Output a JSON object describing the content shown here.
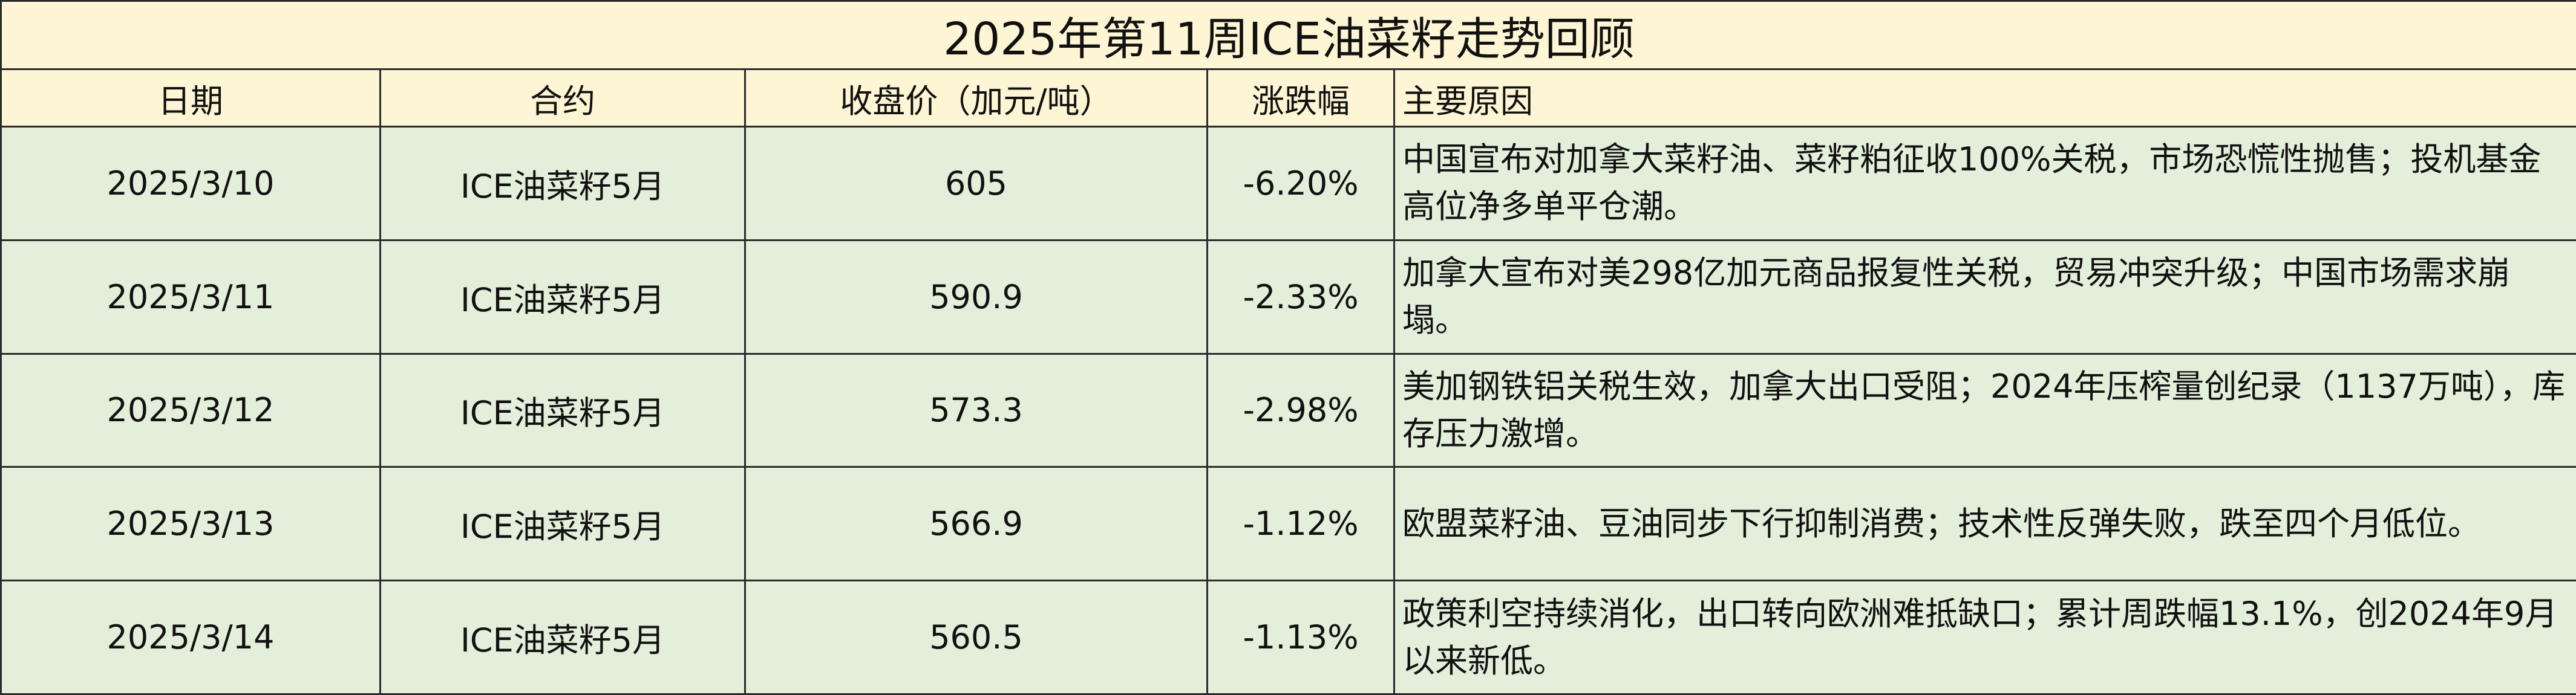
{
  "header": {
    "title": "2025年第11周ICE油菜籽走势回顾",
    "columns": [
      "日期",
      "合约",
      "收盘价（加元/吨）",
      "涨跌幅",
      "主要原因"
    ]
  },
  "table": {
    "rows": [
      [
        "2025/3/10",
        "ICE油菜籽5月",
        "605",
        "-6.20%",
        "中国宣布对加拿大菜籽油、菜籽粕征收100%关税，市场恐慌性抛售；投机基金高位净多单平仓潮。"
      ],
      [
        "2025/3/11",
        "ICE油菜籽5月",
        "590.9",
        "-2.33%",
        "加拿大宣布对美298亿加元商品报复性关税，贸易冲突升级；中国市场需求崩塌。"
      ],
      [
        "2025/3/12",
        "ICE油菜籽5月",
        "573.3",
        "-2.98%",
        "美加钢铁铝关税生效，加拿大出口受阻；2024年压榨量创纪录（1137万吨），库存压力激增。"
      ],
      [
        "2025/3/13",
        "ICE油菜籽5月",
        "566.9",
        "-1.12%",
        "欧盟菜籽油、豆油同步下行抑制消费；技术性反弹失败，跌至四个月低位。"
      ],
      [
        "2025/3/14",
        "ICE油菜籽5月",
        "560.5",
        "-1.13%",
        "政策利空持续消化，出口转向欧洲难抵缺口；累计周跌幅13.1%，创2024年9月以来新低。"
      ]
    ]
  }
}
